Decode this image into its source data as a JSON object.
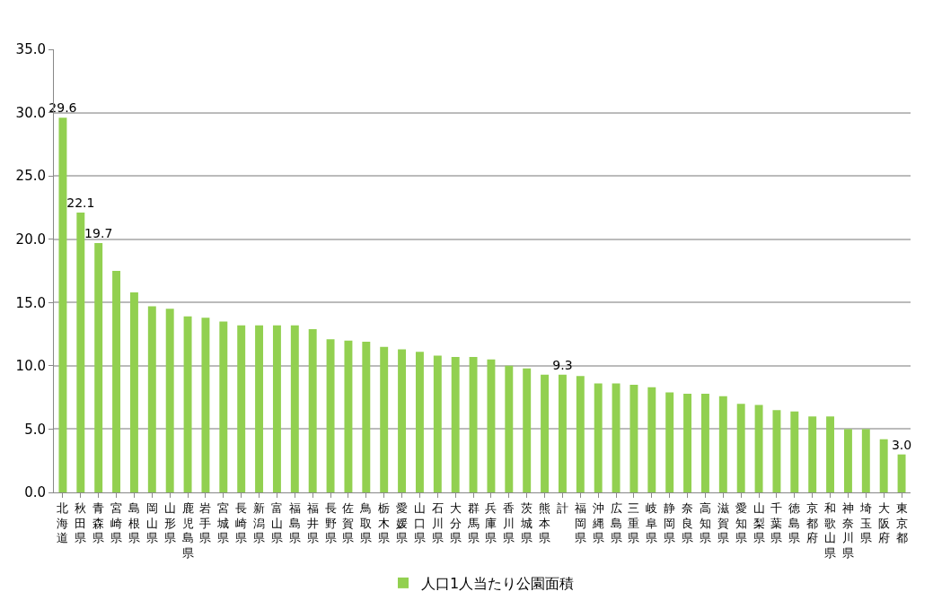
{
  "chart_data": {
    "type": "bar",
    "categories": [
      "北海道",
      "秋田県",
      "青森県",
      "宮崎県",
      "島根県",
      "岡山県",
      "山形県",
      "鹿児島県",
      "岩手県",
      "宮城県",
      "長崎県",
      "新潟県",
      "富山県",
      "福島県",
      "福井県",
      "長野県",
      "佐賀県",
      "鳥取県",
      "栃木県",
      "愛媛県",
      "山口県",
      "石川県",
      "大分県",
      "群馬県",
      "兵庫県",
      "香川県",
      "茨城県",
      "熊本県",
      "計",
      "福岡県",
      "沖縄県",
      "広島県",
      "三重県",
      "岐阜県",
      "静岡県",
      "奈良県",
      "高知県",
      "滋賀県",
      "愛知県",
      "山梨県",
      "千葉県",
      "徳島県",
      "京都府",
      "和歌山県",
      "神奈川県",
      "埼玉県",
      "大阪府",
      "東京都"
    ],
    "series": [
      {
        "name": "人口1人当たり公園面積",
        "color": "#92d050",
        "values": [
          29.6,
          22.1,
          19.7,
          17.5,
          15.8,
          14.7,
          14.5,
          13.9,
          13.8,
          13.5,
          13.2,
          13.2,
          13.2,
          13.2,
          12.9,
          12.1,
          12.0,
          11.9,
          11.5,
          11.3,
          11.1,
          10.8,
          10.7,
          10.7,
          10.5,
          10.0,
          9.8,
          9.3,
          9.3,
          9.2,
          8.6,
          8.6,
          8.5,
          8.3,
          7.9,
          7.8,
          7.8,
          7.6,
          7.0,
          6.9,
          6.5,
          6.4,
          6.0,
          6.0,
          5.0,
          5.0,
          4.2,
          3.0
        ],
        "value_labels": [
          "29.6",
          "22.1",
          "19.7",
          null,
          null,
          null,
          null,
          null,
          null,
          null,
          null,
          null,
          null,
          null,
          null,
          null,
          null,
          null,
          null,
          null,
          null,
          null,
          null,
          null,
          null,
          null,
          null,
          null,
          "9.3",
          null,
          null,
          null,
          null,
          null,
          null,
          null,
          null,
          null,
          null,
          null,
          null,
          null,
          null,
          null,
          null,
          null,
          null,
          "3.0"
        ]
      }
    ],
    "ylim": [
      0,
      35
    ],
    "yticks": [
      {
        "value": 0,
        "label": "0.0"
      },
      {
        "value": 5,
        "label": "5.0"
      },
      {
        "value": 10,
        "label": "10.0"
      },
      {
        "value": 15,
        "label": "15.0"
      },
      {
        "value": 20,
        "label": "20.0"
      },
      {
        "value": 25,
        "label": "25.0"
      },
      {
        "value": 30,
        "label": "30.0"
      },
      {
        "value": 35,
        "label": "35.0"
      }
    ],
    "grid": "y",
    "legend": "bottom"
  }
}
